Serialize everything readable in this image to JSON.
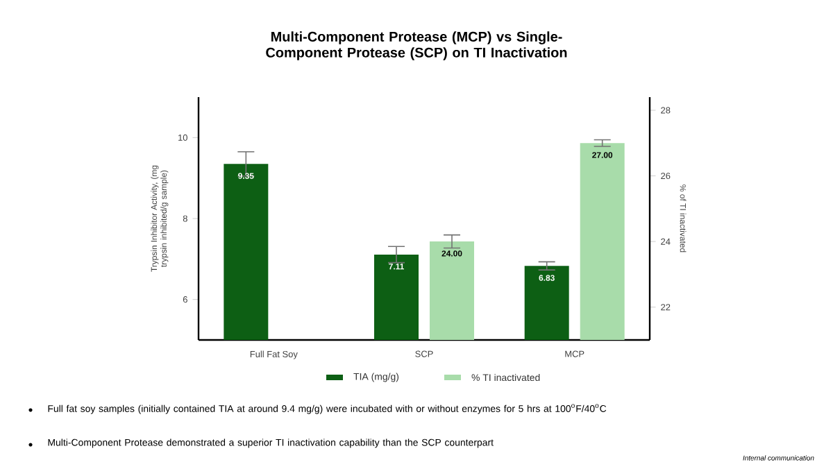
{
  "chart_data": {
    "type": "bar",
    "title": "Multi-Component Protease (MCP) vs Single-Component Protease (SCP) on TI Inactivation",
    "ylabel": "Trypsin Inhibitor Activity, (mg trypsin inhibited/g sample)",
    "y2label": "% of TI inactivated",
    "categories": [
      "Full Fat Soy",
      "SCP",
      "MCP"
    ],
    "series": [
      {
        "name": "TIA (mg/g)",
        "color": "#0d5f14",
        "values": [
          9.35,
          7.11,
          6.83
        ],
        "errors": [
          0.3,
          0.2,
          0.1
        ],
        "value_labels": [
          "9.35",
          "7.11",
          "6.83"
        ]
      },
      {
        "name": "% TI inactivated",
        "color": "#a8dcaa",
        "axis": "y2",
        "values": [
          null,
          24.0,
          27.0
        ],
        "errors": [
          null,
          0.2,
          0.1
        ],
        "value_labels": [
          null,
          "24.00",
          "27.00"
        ]
      }
    ],
    "ylim": [
      5,
      11
    ],
    "yticks": [
      6,
      8,
      10
    ],
    "y2lim": [
      21,
      28.4
    ],
    "y2ticks": [
      22,
      24,
      26,
      28
    ],
    "legend": "bottom",
    "annotations": [
      "Full fat soy samples (initially contained TIA at around 9.4 mg/g) were incubated with or without enzymes for 5 hrs at 100$^{o}$F/40$^{o}$C",
      "Multi-Component Protease demonstrated a superior TI inactivation capability than the SCP counterpart",
      "Internal communication"
    ]
  }
}
